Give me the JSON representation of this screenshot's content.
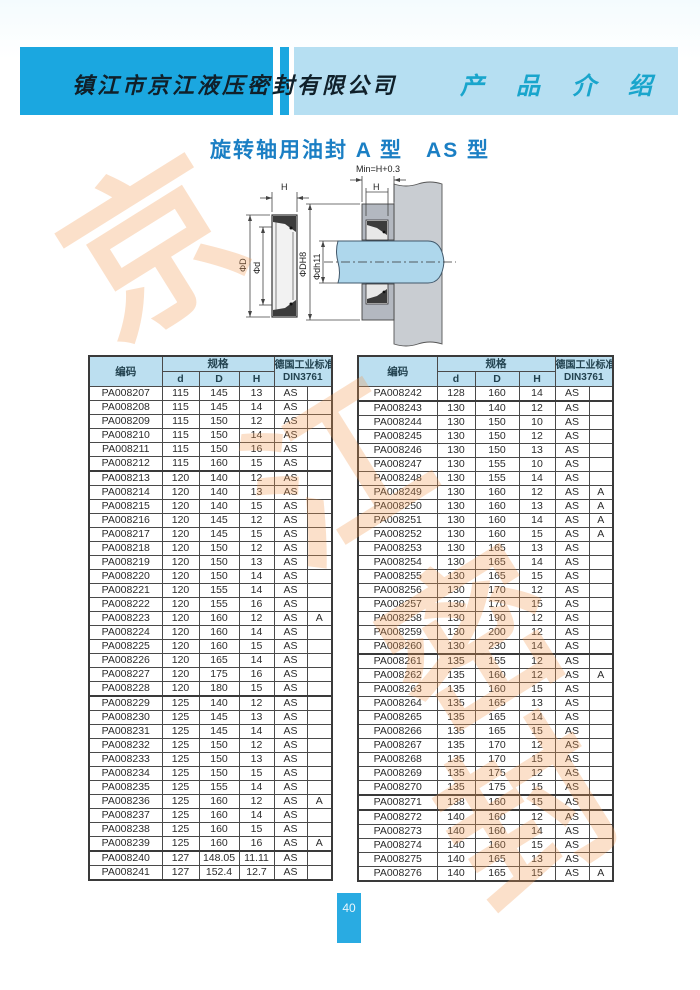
{
  "header": {
    "company": "镇江市京江液压密封有限公司",
    "section": "产 品 介 绍"
  },
  "title": "旋转轴用油封 A 型　AS 型",
  "diagram": {
    "min_label": "Min=H+0.3",
    "h_label": "H",
    "h_small_label": "H",
    "outer_dia_label": "ΦD",
    "inner_dia_label": "Φd",
    "bore_label": "ΦDH8",
    "shaft_label": "Φdh11"
  },
  "watermark": {
    "chars": [
      "京",
      "江",
      "密",
      "封"
    ]
  },
  "tables": {
    "headers": {
      "code": "编码",
      "spec": "规格",
      "d": "d",
      "big_d": "D",
      "h": "H",
      "std_line1": "德国工业标准",
      "std_line2": "DIN3761"
    },
    "left_rows": [
      [
        "PA008207",
        "115",
        "145",
        "13",
        "AS",
        ""
      ],
      [
        "PA008208",
        "115",
        "145",
        "14",
        "AS",
        ""
      ],
      [
        "PA008209",
        "115",
        "150",
        "12",
        "AS",
        ""
      ],
      [
        "PA008210",
        "115",
        "150",
        "14",
        "AS",
        ""
      ],
      [
        "PA008211",
        "115",
        "150",
        "16",
        "AS",
        ""
      ],
      [
        "PA008212",
        "115",
        "160",
        "15",
        "AS",
        ""
      ],
      [
        "PA008213",
        "120",
        "140",
        "12",
        "AS",
        ""
      ],
      [
        "PA008214",
        "120",
        "140",
        "13",
        "AS",
        ""
      ],
      [
        "PA008215",
        "120",
        "140",
        "15",
        "AS",
        ""
      ],
      [
        "PA008216",
        "120",
        "145",
        "12",
        "AS",
        ""
      ],
      [
        "PA008217",
        "120",
        "145",
        "15",
        "AS",
        ""
      ],
      [
        "PA008218",
        "120",
        "150",
        "12",
        "AS",
        ""
      ],
      [
        "PA008219",
        "120",
        "150",
        "13",
        "AS",
        ""
      ],
      [
        "PA008220",
        "120",
        "150",
        "14",
        "AS",
        ""
      ],
      [
        "PA008221",
        "120",
        "155",
        "14",
        "AS",
        ""
      ],
      [
        "PA008222",
        "120",
        "155",
        "16",
        "AS",
        ""
      ],
      [
        "PA008223",
        "120",
        "160",
        "12",
        "AS",
        "A"
      ],
      [
        "PA008224",
        "120",
        "160",
        "14",
        "AS",
        ""
      ],
      [
        "PA008225",
        "120",
        "160",
        "15",
        "AS",
        ""
      ],
      [
        "PA008226",
        "120",
        "165",
        "14",
        "AS",
        ""
      ],
      [
        "PA008227",
        "120",
        "175",
        "16",
        "AS",
        ""
      ],
      [
        "PA008228",
        "120",
        "180",
        "15",
        "AS",
        ""
      ],
      [
        "PA008229",
        "125",
        "140",
        "12",
        "AS",
        ""
      ],
      [
        "PA008230",
        "125",
        "145",
        "13",
        "AS",
        ""
      ],
      [
        "PA008231",
        "125",
        "145",
        "14",
        "AS",
        ""
      ],
      [
        "PA008232",
        "125",
        "150",
        "12",
        "AS",
        ""
      ],
      [
        "PA008233",
        "125",
        "150",
        "13",
        "AS",
        ""
      ],
      [
        "PA008234",
        "125",
        "150",
        "15",
        "AS",
        ""
      ],
      [
        "PA008235",
        "125",
        "155",
        "14",
        "AS",
        ""
      ],
      [
        "PA008236",
        "125",
        "160",
        "12",
        "AS",
        "A"
      ],
      [
        "PA008237",
        "125",
        "160",
        "14",
        "AS",
        ""
      ],
      [
        "PA008238",
        "125",
        "160",
        "15",
        "AS",
        ""
      ],
      [
        "PA008239",
        "125",
        "160",
        "16",
        "AS",
        "A"
      ],
      [
        "PA008240",
        "127",
        "148.05",
        "11.11",
        "AS",
        ""
      ],
      [
        "PA008241",
        "127",
        "152.4",
        "12.7",
        "AS",
        ""
      ]
    ],
    "right_rows": [
      [
        "PA008242",
        "128",
        "160",
        "14",
        "AS",
        ""
      ],
      [
        "PA008243",
        "130",
        "140",
        "12",
        "AS",
        ""
      ],
      [
        "PA008244",
        "130",
        "150",
        "10",
        "AS",
        ""
      ],
      [
        "PA008245",
        "130",
        "150",
        "12",
        "AS",
        ""
      ],
      [
        "PA008246",
        "130",
        "150",
        "13",
        "AS",
        ""
      ],
      [
        "PA008247",
        "130",
        "155",
        "10",
        "AS",
        ""
      ],
      [
        "PA008248",
        "130",
        "155",
        "14",
        "AS",
        ""
      ],
      [
        "PA008249",
        "130",
        "160",
        "12",
        "AS",
        "A"
      ],
      [
        "PA008250",
        "130",
        "160",
        "13",
        "AS",
        "A"
      ],
      [
        "PA008251",
        "130",
        "160",
        "14",
        "AS",
        "A"
      ],
      [
        "PA008252",
        "130",
        "160",
        "15",
        "AS",
        "A"
      ],
      [
        "PA008253",
        "130",
        "165",
        "13",
        "AS",
        ""
      ],
      [
        "PA008254",
        "130",
        "165",
        "14",
        "AS",
        ""
      ],
      [
        "PA008255",
        "130",
        "165",
        "15",
        "AS",
        ""
      ],
      [
        "PA008256",
        "130",
        "170",
        "12",
        "AS",
        ""
      ],
      [
        "PA008257",
        "130",
        "170",
        "15",
        "AS",
        ""
      ],
      [
        "PA008258",
        "130",
        "190",
        "12",
        "AS",
        ""
      ],
      [
        "PA008259",
        "130",
        "200",
        "12",
        "AS",
        ""
      ],
      [
        "PA008260",
        "130",
        "230",
        "14",
        "AS",
        ""
      ],
      [
        "PA008261",
        "135",
        "155",
        "12",
        "AS",
        ""
      ],
      [
        "PA008262",
        "135",
        "160",
        "12",
        "AS",
        "A"
      ],
      [
        "PA008263",
        "135",
        "160",
        "15",
        "AS",
        ""
      ],
      [
        "PA008264",
        "135",
        "165",
        "13",
        "AS",
        ""
      ],
      [
        "PA008265",
        "135",
        "165",
        "14",
        "AS",
        ""
      ],
      [
        "PA008266",
        "135",
        "165",
        "15",
        "AS",
        ""
      ],
      [
        "PA008267",
        "135",
        "170",
        "12",
        "AS",
        ""
      ],
      [
        "PA008268",
        "135",
        "170",
        "15",
        "AS",
        ""
      ],
      [
        "PA008269",
        "135",
        "175",
        "12",
        "AS",
        ""
      ],
      [
        "PA008270",
        "135",
        "175",
        "15",
        "AS",
        ""
      ],
      [
        "PA008271",
        "138",
        "160",
        "15",
        "AS",
        ""
      ],
      [
        "PA008272",
        "140",
        "160",
        "12",
        "AS",
        ""
      ],
      [
        "PA008273",
        "140",
        "160",
        "14",
        "AS",
        ""
      ],
      [
        "PA008274",
        "140",
        "160",
        "15",
        "AS",
        ""
      ],
      [
        "PA008275",
        "140",
        "165",
        "13",
        "AS",
        ""
      ],
      [
        "PA008276",
        "140",
        "165",
        "15",
        "AS",
        "A"
      ]
    ]
  },
  "footer": {
    "page_number": "40"
  },
  "colors": {
    "header_dark_blue": "#1ba7e0",
    "header_light_blue": "#b6dff2",
    "section_text": "#19a5cc",
    "title_blue": "#1b7fc4",
    "table_header_bg": "#bcdff0",
    "page_num_bg": "#29abe2",
    "shaft_blue": "#aed7ec",
    "housing_gray": "#c9cdd2",
    "watermark_orange": "#f29950"
  }
}
